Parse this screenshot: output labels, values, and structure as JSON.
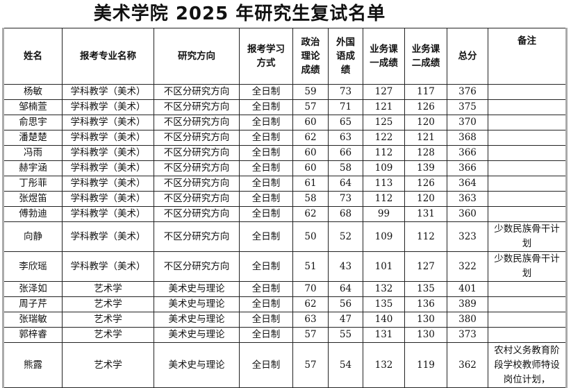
{
  "title": "美术学院 2025 年研究生复试名单",
  "headers": [
    "姓名",
    "报考专业名称",
    "研究方向",
    "报考学习方式",
    "政治理论成绩",
    "外国语成绩",
    "业务课一成绩",
    "业务课二成绩",
    "总分",
    "备注"
  ],
  "rows": [
    {
      "name": "杨敏",
      "major": "学科教学（美术）",
      "direction": "不区分研究方向",
      "mode": "全日制",
      "politics": "59",
      "foreign": "73",
      "course1": "127",
      "course2": "117",
      "total": "376",
      "note": ""
    },
    {
      "name": "邹楠萱",
      "major": "学科教学（美术）",
      "direction": "不区分研究方向",
      "mode": "全日制",
      "politics": "57",
      "foreign": "71",
      "course1": "121",
      "course2": "126",
      "total": "375",
      "note": ""
    },
    {
      "name": "俞思宇",
      "major": "学科教学（美术）",
      "direction": "不区分研究方向",
      "mode": "全日制",
      "politics": "60",
      "foreign": "65",
      "course1": "125",
      "course2": "120",
      "total": "370",
      "note": ""
    },
    {
      "name": "潘楚楚",
      "major": "学科教学（美术）",
      "direction": "不区分研究方向",
      "mode": "全日制",
      "politics": "62",
      "foreign": "63",
      "course1": "122",
      "course2": "121",
      "total": "368",
      "note": ""
    },
    {
      "name": "冯雨",
      "major": "学科教学（美术）",
      "direction": "不区分研究方向",
      "mode": "全日制",
      "politics": "60",
      "foreign": "66",
      "course1": "112",
      "course2": "128",
      "total": "366",
      "note": ""
    },
    {
      "name": "赫宇涵",
      "major": "学科教学（美术）",
      "direction": "不区分研究方向",
      "mode": "全日制",
      "politics": "60",
      "foreign": "58",
      "course1": "109",
      "course2": "139",
      "total": "366",
      "note": ""
    },
    {
      "name": "丁彤菲",
      "major": "学科教学（美术）",
      "direction": "不区分研究方向",
      "mode": "全日制",
      "politics": "61",
      "foreign": "64",
      "course1": "113",
      "course2": "126",
      "total": "364",
      "note": ""
    },
    {
      "name": "张煜笛",
      "major": "学科教学（美术）",
      "direction": "不区分研究方向",
      "mode": "全日制",
      "politics": "58",
      "foreign": "73",
      "course1": "112",
      "course2": "120",
      "total": "363",
      "note": ""
    },
    {
      "name": "傅勃迪",
      "major": "学科教学（美术）",
      "direction": "不区分研究方向",
      "mode": "全日制",
      "politics": "62",
      "foreign": "68",
      "course1": "99",
      "course2": "131",
      "total": "360",
      "note": ""
    },
    {
      "name": "向静",
      "major": "学科教学（美术）",
      "direction": "不区分研究方向",
      "mode": "全日制",
      "politics": "50",
      "foreign": "52",
      "course1": "109",
      "course2": "112",
      "total": "323",
      "note": "少数民族骨干计划"
    },
    {
      "name": "李欣瑶",
      "major": "学科教学（美术）",
      "direction": "不区分研究方向",
      "mode": "全日制",
      "politics": "51",
      "foreign": "43",
      "course1": "101",
      "course2": "127",
      "total": "322",
      "note": "少数民族骨干计划"
    },
    {
      "name": "张泽如",
      "major": "艺术学",
      "direction": "美术史与理论",
      "mode": "全日制",
      "politics": "70",
      "foreign": "64",
      "course1": "132",
      "course2": "135",
      "total": "401",
      "note": ""
    },
    {
      "name": "周子芹",
      "major": "艺术学",
      "direction": "美术史与理论",
      "mode": "全日制",
      "politics": "62",
      "foreign": "56",
      "course1": "135",
      "course2": "136",
      "total": "389",
      "note": ""
    },
    {
      "name": "张瑞敏",
      "major": "艺术学",
      "direction": "美术史与理论",
      "mode": "全日制",
      "politics": "63",
      "foreign": "47",
      "course1": "140",
      "course2": "130",
      "total": "380",
      "note": ""
    },
    {
      "name": "郭梓睿",
      "major": "艺术学",
      "direction": "美术史与理论",
      "mode": "全日制",
      "politics": "57",
      "foreign": "55",
      "course1": "131",
      "course2": "130",
      "total": "373",
      "note": ""
    },
    {
      "name": "熊露",
      "major": "艺术学",
      "direction": "美术史与理论",
      "mode": "全日制",
      "politics": "57",
      "foreign": "54",
      "course1": "132",
      "course2": "119",
      "total": "362",
      "note": "农村义务教育阶段学校教师特设岗位计划，"
    }
  ]
}
